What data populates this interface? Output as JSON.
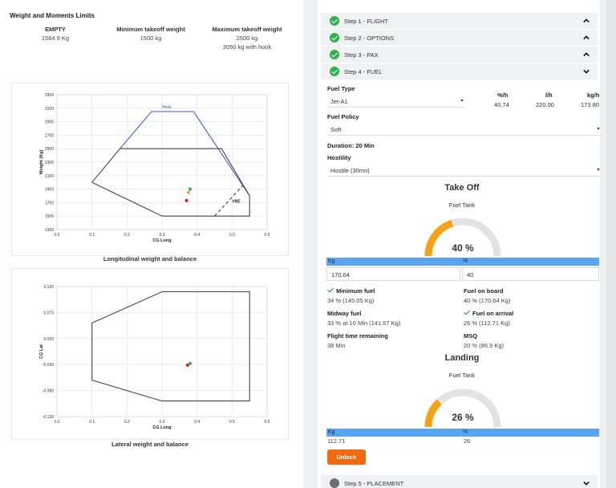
{
  "limits": {
    "title": "Weight and Moments Limits",
    "empty": {
      "label": "EMPTY",
      "value": "1564.9 Kg"
    },
    "min_takeoff": {
      "label": "Minimum takeoff weight",
      "value": "1500 kg"
    },
    "max_takeoff": {
      "label": "Maximum takeoff weight",
      "value": "2500 kg",
      "value2": "3050 kg with hook"
    }
  },
  "charts": {
    "longitudinal_caption": "Longitudinal weight and balance",
    "lateral_caption": "Lateral weight and balance"
  },
  "chart_data": [
    {
      "type": "scatter",
      "title": "Longitudinal weight and balance",
      "xlabel": "CG Long",
      "ylabel": "Weight (Kg)",
      "xlim": [
        0.0,
        0.6
      ],
      "ylim": [
        1300,
        3300
      ],
      "x_ticks": [
        "0.0",
        "0.1",
        "0.2",
        "0.3",
        "0.4",
        "0.5",
        "0.6"
      ],
      "y_ticks": [
        "1300",
        "1500",
        "1700",
        "1900",
        "2100",
        "2300",
        "2500",
        "2700",
        "2900",
        "3100",
        "3300"
      ],
      "annotations": [
        "Hook",
        "VNE"
      ],
      "envelopes": [
        {
          "name": "Hook",
          "color": "#3b5bd6",
          "points": [
            [
              0.18,
              2500
            ],
            [
              0.27,
              3050
            ],
            [
              0.39,
              3050
            ],
            [
              0.55,
              1800
            ]
          ]
        },
        {
          "name": "envelope",
          "color": "#444444",
          "points": [
            [
              0.1,
              2000
            ],
            [
              0.18,
              2500
            ],
            [
              0.47,
              2500
            ],
            [
              0.55,
              1800
            ],
            [
              0.55,
              1500
            ],
            [
              0.3,
              1500
            ],
            [
              0.1,
              2000
            ]
          ]
        },
        {
          "name": "VNE",
          "color": "#444444",
          "dashed": true,
          "points": [
            [
              0.45,
              1500
            ],
            [
              0.53,
              1950
            ]
          ]
        }
      ],
      "points": [
        {
          "x": 0.38,
          "y": 1900,
          "color": "#2db34a"
        },
        {
          "x": 0.375,
          "y": 1850,
          "color": "#f5a623"
        },
        {
          "x": 0.37,
          "y": 1730,
          "color": "#d62020"
        }
      ]
    },
    {
      "type": "scatter",
      "title": "Lateral weight and balance",
      "xlabel": "CG Long",
      "ylabel": "CG Lat",
      "xlim": [
        0.0,
        0.6
      ],
      "x_ticks": [
        "0.0",
        "0.1",
        "0.2",
        "0.3",
        "0.4",
        "0.5",
        "0.6"
      ],
      "y_ticks": [
        "0.120",
        "0.070",
        "0.020",
        "-0.030",
        "-0.080",
        "-0.130"
      ],
      "envelopes": [
        {
          "name": "envelope",
          "color": "#444444",
          "points": [
            [
              0.1,
              0.05
            ],
            [
              0.3,
              0.11
            ],
            [
              0.55,
              0.11
            ],
            [
              0.55,
              -0.1
            ],
            [
              0.3,
              -0.1
            ],
            [
              0.1,
              -0.06
            ],
            [
              0.1,
              0.05
            ]
          ]
        }
      ],
      "points": [
        {
          "x": 0.38,
          "y": -0.028,
          "color": "#2db34a"
        },
        {
          "x": 0.373,
          "y": -0.031,
          "color": "#d62020"
        }
      ]
    }
  ],
  "steps": [
    {
      "label": "Step 1 - FLIGHT",
      "status": "done",
      "open": false
    },
    {
      "label": "Step 2 - OPTIONS",
      "status": "done",
      "open": false
    },
    {
      "label": "Step 3 - PAX",
      "status": "done",
      "open": false
    },
    {
      "label": "Step 4 - FUEL",
      "status": "done",
      "open": true
    },
    {
      "label": "Step 5 - PLACEMENT",
      "status": "pending",
      "open": true
    }
  ],
  "fuel": {
    "type_label": "Fuel Type",
    "type_value": "Jet-A1",
    "col_pct_h": "%/h",
    "col_l_h": "l/h",
    "col_kg_h": "kg/h",
    "pct_h": "40.74",
    "l_h": "220.00",
    "kg_h": "173.80",
    "policy_label": "Fuel Policy",
    "policy_value": "Soft",
    "duration": "Duration: 20 Min",
    "hostility_label": "Hostility",
    "hostility_value": "Hostile (30mn)"
  },
  "takeoff": {
    "title": "Take Off",
    "tank_label": "Fuel Tank",
    "gauge_text": "40 %",
    "gauge_fraction": 0.4,
    "kg_header": "Kg",
    "pct_header": "%",
    "kg_value": "170.64",
    "pct_value": "40",
    "min_fuel_label": "Minimum fuel",
    "min_fuel_value": "34 % (145.05 Kg)",
    "fuel_on_board_label": "Fuel on board",
    "fuel_on_board_value": "40 % (170.64 Kg)",
    "midway_label": "Midway fuel",
    "midway_value": "33 % at 10 Min (141.67 Kg)",
    "arrival_label": "Fuel on arrival",
    "arrival_value": "26 % (112.71 Kg)",
    "remaining_label": "Flight time remaining",
    "remaining_value": "38 Min",
    "msq_label": "MSQ",
    "msq_value": "20 % (86.9 Kg)"
  },
  "landing": {
    "title": "Landing",
    "tank_label": "Fuel Tank",
    "gauge_text": "26 %",
    "gauge_fraction": 0.26,
    "kg_header": "Kg",
    "pct_header": "%",
    "kg_value": "112.71",
    "pct_value": "26"
  },
  "unlock_label": "Unlock",
  "colors": {
    "accent_orange": "#f5a21b",
    "gauge_track": "#e3e3e3",
    "blue_bar": "#5aa5f0",
    "success": "#2db34a",
    "button": "#f06a0f"
  }
}
